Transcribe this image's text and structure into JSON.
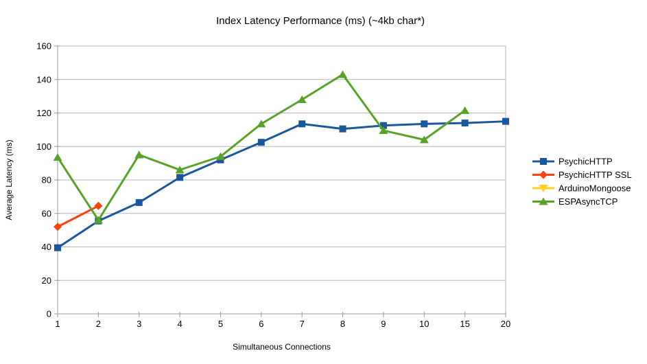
{
  "chart_data": {
    "type": "line",
    "title": "Index Latency Performance (ms) (~4kb char*)",
    "xlabel": "Simultaneous Connections",
    "ylabel": "Average Latency (ms)",
    "categories": [
      "1",
      "2",
      "3",
      "4",
      "5",
      "6",
      "7",
      "8",
      "9",
      "10",
      "15",
      "20"
    ],
    "ylim": [
      0,
      160
    ],
    "ytick_step": 20,
    "grid": "horizontal",
    "legend_position": "right",
    "colors": {
      "grid": "#b5b5b5",
      "axis": "#9a9a9a",
      "text": "#000000",
      "background": "#ffffff"
    },
    "series": [
      {
        "name": "PsychicHTTP",
        "color": "#1a579c",
        "marker": "square",
        "values": [
          39.5,
          55.5,
          66.5,
          81.5,
          92,
          102.5,
          113.5,
          110.5,
          112.5,
          113.5,
          114,
          115
        ]
      },
      {
        "name": "PsychicHTTP SSL",
        "color": "#ff420e",
        "marker": "diamond",
        "values": [
          52,
          64.5,
          null,
          null,
          null,
          null,
          null,
          null,
          null,
          null,
          null,
          null
        ]
      },
      {
        "name": "ArduinoMongoose",
        "color": "#ffd320",
        "marker": "triangle-down",
        "values": [
          null,
          null,
          null,
          null,
          null,
          null,
          null,
          null,
          null,
          null,
          null,
          null
        ]
      },
      {
        "name": "ESPAsyncTCP",
        "color": "#57a327",
        "marker": "triangle-up",
        "values": [
          93.5,
          56,
          95,
          86,
          94,
          113.5,
          128,
          143,
          109.5,
          104,
          121.5,
          null
        ]
      }
    ]
  }
}
